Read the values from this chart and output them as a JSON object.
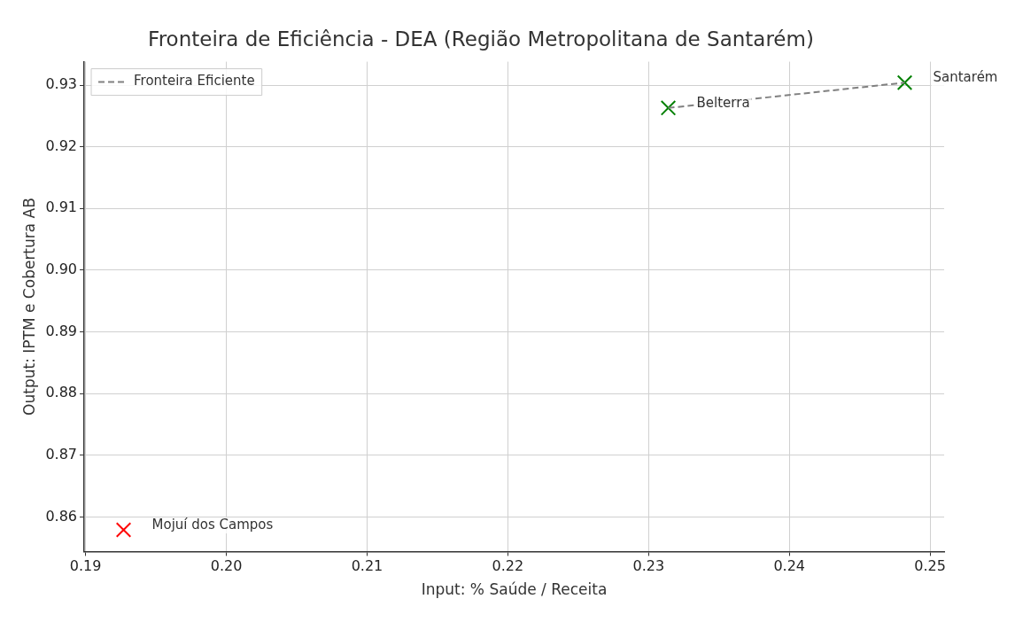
{
  "chart_data": {
    "type": "scatter",
    "title": "Fronteira de Eficiência - DEA (Região Metropolitana de Santarém)",
    "xlabel": "Input: % Saúde / Receita",
    "ylabel": "Output: IPTM e Cobertura AB",
    "xlim": [
      0.1899,
      0.251
    ],
    "xticks": [
      0.19,
      {
        "value": 0.2,
        "label": "0.20"
      },
      0.21,
      0.22,
      0.23,
      0.24,
      0.25
    ],
    "ylim": [
      0.8544,
      0.9338
    ],
    "yticks": [
      0.86,
      0.87,
      0.88,
      0.89,
      {
        "value": 0.9,
        "label": "0.90"
      },
      0.91,
      0.92,
      0.93
    ],
    "grid": true,
    "legend": "top left",
    "series": [
      {
        "type": "line",
        "name": "Fronteira Eficiente",
        "color": "#808080",
        "line_style": "dashed",
        "marker": "none",
        "x": [
          0.2314,
          0.2482
        ],
        "values": [
          0.9263,
          0.9304
        ]
      },
      {
        "type": "scatter",
        "marker": "cross",
        "x": [
          0.1927,
          0.2314,
          0.2482
        ],
        "values": [
          0.8579,
          0.9263,
          0.9304
        ],
        "colors": [
          "#ff0000",
          "#008000",
          "#008000"
        ]
      }
    ],
    "annotations": [
      {
        "text": "Mojuí dos Campos",
        "x": 0.1927,
        "y": 0.8579
      },
      {
        "text": "Belterra",
        "x": 0.2314,
        "y": 0.9263
      },
      {
        "text": "Santarém",
        "x": 0.2482,
        "y": 0.9304
      }
    ]
  }
}
